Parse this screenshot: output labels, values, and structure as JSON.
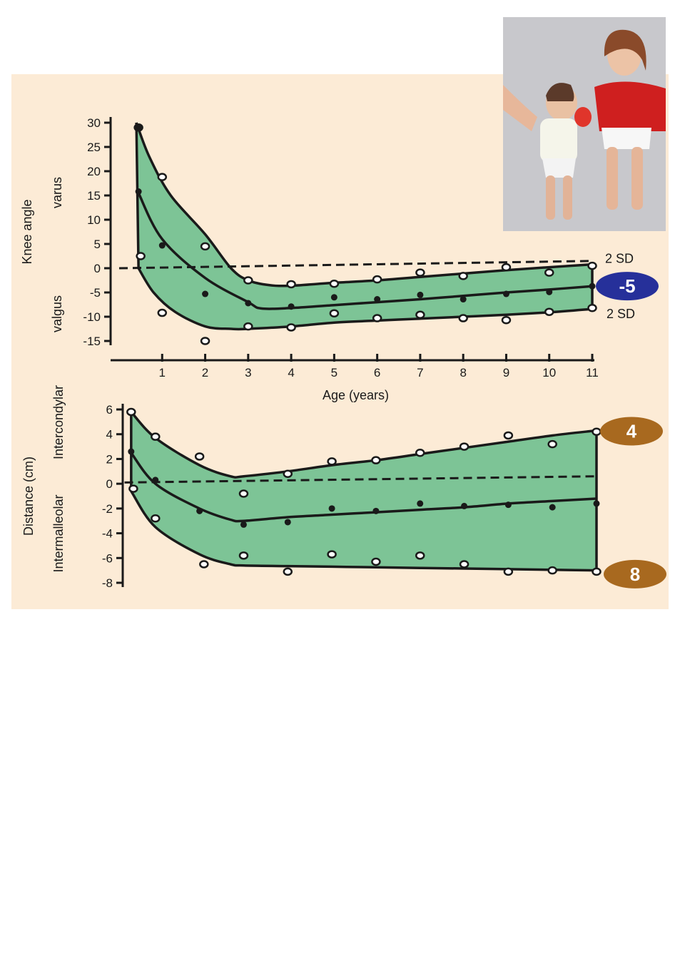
{
  "photo": {
    "description_icon": "children-photo"
  },
  "chart_data": [
    {
      "type": "line",
      "name": "knee-angle",
      "ylabel": "Knee angle",
      "ylabel_upper": "varus",
      "ylabel_lower": "valgus",
      "xlabel": "Age (years)",
      "xlim": [
        0,
        11
      ],
      "ylim": [
        -15,
        30
      ],
      "yticks": [
        30,
        25,
        20,
        15,
        10,
        5,
        0,
        -5,
        -10,
        -15
      ],
      "xticks": [
        1,
        2,
        3,
        4,
        5,
        6,
        7,
        8,
        9,
        10,
        11
      ],
      "series": [
        {
          "role": "upper",
          "x": [
            0.4,
            0.7,
            1.2,
            2,
            2.6,
            3,
            3.5,
            4,
            5,
            6,
            7,
            8,
            9,
            10,
            11
          ],
          "values": [
            30,
            23,
            15,
            7,
            0,
            -2.5,
            -3.5,
            -3.6,
            -3,
            -2.5,
            -1.8,
            -1.1,
            -0.4,
            0.2,
            0.8
          ]
        },
        {
          "role": "mean",
          "x": [
            0.45,
            1,
            2,
            3,
            3.3,
            4,
            5,
            6,
            7,
            8,
            9,
            10,
            11
          ],
          "values": [
            15.5,
            6,
            -2,
            -7,
            -8.3,
            -8.2,
            -7.6,
            -7,
            -6.4,
            -5.7,
            -5,
            -4.4,
            -3.7
          ]
        },
        {
          "role": "lower",
          "x": [
            0.45,
            0.8,
            1.3,
            2,
            2.6,
            3,
            4,
            5,
            6,
            7,
            8,
            9,
            10,
            11
          ],
          "values": [
            0,
            -5,
            -9,
            -12,
            -12.5,
            -12.5,
            -12,
            -11.2,
            -10.8,
            -10.4,
            -10,
            -9.6,
            -9.1,
            -8.4
          ]
        },
        {
          "role": "zero-line",
          "x": [
            0,
            11
          ],
          "values": [
            0,
            1.5
          ]
        }
      ],
      "points_open": [
        [
          0.45,
          29
        ],
        [
          1,
          18.8
        ],
        [
          2,
          4.5
        ],
        [
          3,
          -2.5
        ],
        [
          4,
          -3.3
        ],
        [
          5,
          -3.2
        ],
        [
          6,
          -2.3
        ],
        [
          7,
          -0.9
        ],
        [
          8,
          -1.6
        ],
        [
          9,
          0.2
        ],
        [
          10,
          -0.9
        ],
        [
          11,
          0.5
        ],
        [
          0.5,
          2.5
        ],
        [
          1,
          -9.2
        ],
        [
          2,
          -15
        ],
        [
          3,
          -12
        ],
        [
          4,
          -12.2
        ],
        [
          5,
          -9.3
        ],
        [
          6,
          -10.3
        ],
        [
          7,
          -9.6
        ],
        [
          8,
          -10.3
        ],
        [
          9,
          -10.7
        ],
        [
          10,
          -9
        ],
        [
          11,
          -8.2
        ]
      ],
      "points_filled": [
        [
          0.45,
          29
        ],
        [
          0.45,
          15.8
        ],
        [
          1,
          4.7
        ],
        [
          2,
          -5.3
        ],
        [
          3,
          -7.2
        ],
        [
          4,
          -7.9
        ],
        [
          5,
          -6
        ],
        [
          6,
          -6.4
        ],
        [
          7,
          -5.5
        ],
        [
          8,
          -6.4
        ],
        [
          9,
          -5.3
        ],
        [
          10,
          -4.9
        ],
        [
          11,
          -3.7
        ]
      ],
      "annotations": [
        {
          "text": "2 SD",
          "at": "upper"
        },
        {
          "text": "2 SD",
          "at": "lower"
        }
      ],
      "badge": {
        "text": "-5",
        "color": "#26309a"
      }
    },
    {
      "type": "line",
      "name": "distance",
      "ylabel": "Distance (cm)",
      "ylabel_upper": "Intercondylar",
      "ylabel_lower": "Intermalleolar",
      "xlim": [
        0,
        11
      ],
      "ylim": [
        -8,
        6
      ],
      "yticks": [
        6,
        4,
        2,
        0,
        -2,
        -4,
        -6,
        -8
      ],
      "series": [
        {
          "role": "upper",
          "x": [
            0.45,
            1,
            2,
            2.7,
            3,
            4,
            5,
            6,
            7,
            8,
            9,
            10,
            11
          ],
          "values": [
            5.8,
            3.7,
            1.5,
            0.6,
            0.6,
            1,
            1.5,
            1.9,
            2.4,
            2.9,
            3.4,
            3.9,
            4.3
          ]
        },
        {
          "role": "mean",
          "x": [
            0.45,
            1,
            2,
            2.7,
            3,
            4,
            5,
            6,
            7,
            8,
            9,
            10,
            11
          ],
          "values": [
            2.5,
            0,
            -2,
            -2.9,
            -3,
            -2.7,
            -2.5,
            -2.3,
            -2.1,
            -1.9,
            -1.6,
            -1.4,
            -1.2
          ]
        },
        {
          "role": "lower",
          "x": [
            0.45,
            1,
            2,
            2.7,
            3,
            4,
            5,
            6,
            7,
            8,
            9,
            10,
            11
          ],
          "values": [
            -0.6,
            -3.5,
            -5.7,
            -6.5,
            -6.6,
            -6.65,
            -6.7,
            -6.75,
            -6.8,
            -6.85,
            -6.9,
            -6.95,
            -7
          ]
        },
        {
          "role": "zero-line",
          "x": [
            0.3,
            11
          ],
          "values": [
            0.1,
            0.6
          ]
        }
      ],
      "points_open": [
        [
          0.45,
          5.8
        ],
        [
          1,
          3.8
        ],
        [
          2,
          2.2
        ],
        [
          3,
          -0.8
        ],
        [
          4,
          0.8
        ],
        [
          5,
          1.8
        ],
        [
          6,
          1.9
        ],
        [
          7,
          2.5
        ],
        [
          8,
          3
        ],
        [
          9,
          3.9
        ],
        [
          10,
          3.2
        ],
        [
          11,
          4.2
        ],
        [
          0.5,
          -0.4
        ],
        [
          1,
          -2.8
        ],
        [
          2.1,
          -6.5
        ],
        [
          3,
          -5.8
        ],
        [
          4,
          -7.1
        ],
        [
          5,
          -5.7
        ],
        [
          6,
          -6.3
        ],
        [
          7,
          -5.8
        ],
        [
          8,
          -6.5
        ],
        [
          9,
          -7.1
        ],
        [
          10,
          -7
        ],
        [
          11,
          -7.1
        ]
      ],
      "points_filled": [
        [
          0.45,
          2.6
        ],
        [
          1,
          0.3
        ],
        [
          2,
          -2.2
        ],
        [
          3,
          -3.3
        ],
        [
          4,
          -3.1
        ],
        [
          5,
          -2
        ],
        [
          6,
          -2.2
        ],
        [
          7,
          -1.6
        ],
        [
          8,
          -1.8
        ],
        [
          9,
          -1.7
        ],
        [
          10,
          -1.9
        ],
        [
          11,
          -1.6
        ]
      ],
      "badges": [
        {
          "text": "4",
          "color": "#a8691f"
        },
        {
          "text": "8",
          "color": "#a8691f"
        }
      ]
    }
  ],
  "colors": {
    "band": "#7dc496",
    "stroke": "#1a1a1a",
    "panel": "#fcebd6"
  }
}
